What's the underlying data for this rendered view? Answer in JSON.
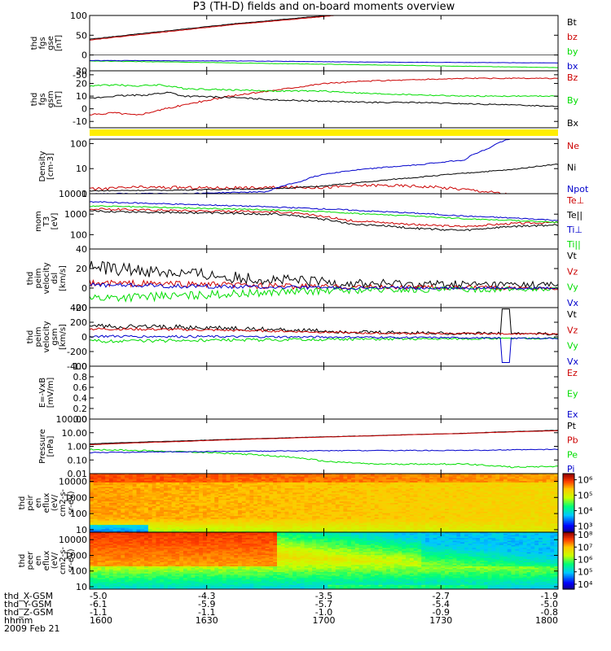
{
  "title": "P3 (TH-D) fields and on-board moments overview",
  "date": "2009 Feb 21",
  "colors": {
    "black": "#000000",
    "red": "#cc0000",
    "green": "#00dd00",
    "blue": "#0000cc",
    "yellow": "#ffee00"
  },
  "chart_data": [
    {
      "id": "fgs_gse",
      "type": "line",
      "ylabel": [
        "thd",
        "fgs",
        "gse",
        "[nT]"
      ],
      "ylim": [
        -40,
        100
      ],
      "yscale": "linear",
      "yticks": [
        "100",
        "50",
        "0",
        "-50"
      ],
      "ytickvals": [
        100,
        50,
        0,
        -50
      ],
      "series": [
        {
          "name": "Bt",
          "color": "#000000",
          "x": [
            0,
            0.3,
            0.6,
            1.0
          ],
          "y": [
            40,
            78,
            110,
            140
          ]
        },
        {
          "name": "bz",
          "color": "#cc0000",
          "x": [
            0,
            0.3,
            0.6,
            1.0
          ],
          "y": [
            38,
            76,
            108,
            138
          ]
        },
        {
          "name": "by",
          "color": "#00dd00",
          "x": [
            0,
            0.3,
            0.6,
            1.0
          ],
          "y": [
            -15,
            -20,
            -25,
            -32
          ]
        },
        {
          "name": "bx",
          "color": "#0000cc",
          "x": [
            0,
            0.3,
            0.6,
            1.0
          ],
          "y": [
            -14,
            -15,
            -18,
            -20
          ]
        }
      ],
      "legend": [
        "Bt",
        "bz",
        "by",
        "bx"
      ],
      "legend_colors": [
        "#000000",
        "#cc0000",
        "#00dd00",
        "#0000cc"
      ]
    },
    {
      "id": "fgs_gsm",
      "type": "line",
      "ylabel": [
        "thd",
        "fgs",
        "gsm",
        "[nT]"
      ],
      "ylim": [
        -15,
        30
      ],
      "yscale": "linear",
      "yticks": [
        "30",
        "20",
        "10",
        "0",
        "-10"
      ],
      "ytickvals": [
        30,
        20,
        10,
        0,
        -10
      ],
      "series": [
        {
          "name": "Bz",
          "color": "#cc0000",
          "x": [
            0,
            0.05,
            0.1,
            0.2,
            0.3,
            0.4,
            0.5,
            0.6,
            0.7,
            0.8,
            0.9,
            1.0
          ],
          "y": [
            -5,
            -3,
            -5,
            3,
            10,
            15,
            20,
            22,
            23,
            24,
            24,
            24
          ]
        },
        {
          "name": "By",
          "color": "#00dd00",
          "x": [
            0,
            0.05,
            0.1,
            0.15,
            0.2,
            0.3,
            0.4,
            0.5,
            0.6,
            0.7,
            0.8,
            0.9,
            1.0
          ],
          "y": [
            18,
            19,
            18,
            19,
            16,
            15,
            14,
            14,
            12,
            11,
            10,
            10,
            10
          ]
        },
        {
          "name": "Bx",
          "color": "#000000",
          "x": [
            0,
            0.05,
            0.12,
            0.17,
            0.2,
            0.3,
            0.4,
            0.5,
            0.6,
            0.7,
            0.8,
            0.9,
            1.0
          ],
          "y": [
            8,
            10,
            11,
            13,
            10,
            9,
            7,
            6,
            5,
            5,
            4,
            3,
            2
          ]
        }
      ],
      "legend": [
        "Bz",
        "By",
        "Bx"
      ],
      "legend_colors": [
        "#cc0000",
        "#00dd00",
        "#000000"
      ]
    },
    {
      "id": "density",
      "type": "line",
      "ylabel": [
        "Density",
        "[cm-3]"
      ],
      "ylim": [
        1,
        150
      ],
      "yscale": "log",
      "yticks": [
        "100",
        "10",
        "1"
      ],
      "ytickvals": [
        100,
        10,
        1
      ],
      "series": [
        {
          "name": "Ne",
          "color": "#cc0000",
          "x": [
            0,
            0.1,
            0.3,
            0.5,
            0.6,
            0.7,
            0.8,
            0.85,
            0.9,
            1.0
          ],
          "y": [
            1.5,
            1.8,
            1.7,
            1.8,
            2.2,
            2.0,
            1.5,
            1.2,
            0.9,
            0.8
          ]
        },
        {
          "name": "Ni",
          "color": "#000000",
          "x": [
            0,
            0.2,
            0.4,
            0.5,
            0.6,
            0.7,
            0.8,
            0.9,
            1.0
          ],
          "y": [
            1.3,
            1.4,
            1.6,
            2,
            3,
            4.5,
            6.5,
            9,
            15
          ]
        },
        {
          "name": "Npot",
          "color": "#0000cc",
          "x": [
            0,
            0.2,
            0.38,
            0.45,
            0.5,
            0.6,
            0.7,
            0.8,
            0.85,
            0.9,
            1.0
          ],
          "y": [
            1.0,
            1.0,
            1.2,
            3,
            6,
            10,
            14,
            22,
            60,
            160,
            300
          ]
        }
      ],
      "legend": [
        "Ne",
        "Ni",
        "Npot"
      ],
      "legend_colors": [
        "#cc0000",
        "#000000",
        "#0000cc"
      ]
    },
    {
      "id": "temperature",
      "type": "line",
      "ylabel": [
        "mom",
        "T3",
        "[eV]"
      ],
      "ylim": [
        20,
        10000
      ],
      "yscale": "log",
      "yticks": [
        "10000",
        "1000",
        "100"
      ],
      "ytickvals": [
        10000,
        1000,
        100
      ],
      "series": [
        {
          "name": "Te_perp",
          "color": "#cc0000",
          "x": [
            0,
            0.2,
            0.4,
            0.55,
            0.7,
            0.8,
            0.9,
            1.0
          ],
          "y": [
            1800,
            1500,
            1300,
            500,
            300,
            250,
            350,
            400
          ]
        },
        {
          "name": "Te_par",
          "color": "#000000",
          "x": [
            0,
            0.2,
            0.4,
            0.55,
            0.7,
            0.8,
            0.9,
            1.0
          ],
          "y": [
            1400,
            1200,
            1000,
            350,
            200,
            160,
            250,
            300
          ]
        },
        {
          "name": "Ti_perp",
          "color": "#0000cc",
          "x": [
            0,
            0.2,
            0.4,
            0.6,
            0.8,
            1.0
          ],
          "y": [
            4000,
            3000,
            2200,
            1400,
            800,
            500
          ]
        },
        {
          "name": "Ti_par",
          "color": "#00dd00",
          "x": [
            0,
            0.2,
            0.4,
            0.6,
            0.8,
            1.0
          ],
          "y": [
            2500,
            2000,
            1600,
            1000,
            600,
            400
          ]
        }
      ],
      "legend": [
        "Te⊥",
        "Te||",
        "Ti⊥",
        "Ti||"
      ],
      "legend_colors": [
        "#cc0000",
        "#000000",
        "#0000cc",
        "#00dd00"
      ]
    },
    {
      "id": "velocity_dsl",
      "type": "line",
      "ylabel": [
        "thd",
        "peim",
        "velocity",
        "dsl",
        "[km/s]"
      ],
      "ylim": [
        -20,
        40
      ],
      "yscale": "linear",
      "yticks": [
        "40",
        "20",
        "0",
        "-20"
      ],
      "ytickvals": [
        40,
        20,
        0,
        -20
      ],
      "series": [
        {
          "name": "Vt",
          "color": "#000000",
          "x": [
            0,
            0.2,
            0.4,
            0.6,
            1.0
          ],
          "y": [
            22,
            15,
            8,
            4,
            3
          ]
        },
        {
          "name": "Vz",
          "color": "#cc0000",
          "x": [
            0,
            0.2,
            0.4,
            0.6,
            1.0
          ],
          "y": [
            5,
            4,
            2,
            1,
            0
          ]
        },
        {
          "name": "Vy",
          "color": "#00dd00",
          "x": [
            0,
            0.2,
            0.4,
            0.6,
            1.0
          ],
          "y": [
            -10,
            -8,
            -4,
            -2,
            -1
          ]
        },
        {
          "name": "Vx",
          "color": "#0000cc",
          "x": [
            0,
            0.2,
            0.4,
            0.6,
            1.0
          ],
          "y": [
            3,
            2,
            1,
            0,
            0
          ]
        }
      ],
      "legend": [
        "Vt",
        "Vz",
        "Vy",
        "Vx"
      ],
      "legend_colors": [
        "#000000",
        "#cc0000",
        "#00dd00",
        "#0000cc"
      ]
    },
    {
      "id": "velocity_gsm",
      "type": "line",
      "ylabel": [
        "thd",
        "peim",
        "velocity",
        "gsm",
        "[km/s]"
      ],
      "ylim": [
        -400,
        400
      ],
      "yscale": "linear",
      "yticks": [
        "400",
        "200",
        "0",
        "-200",
        "-400"
      ],
      "ytickvals": [
        400,
        200,
        0,
        -200,
        -400
      ],
      "series": [
        {
          "name": "Vt",
          "color": "#000000",
          "x": [
            0,
            0.2,
            0.4,
            0.6,
            1.0
          ],
          "y": [
            150,
            130,
            100,
            60,
            40
          ]
        },
        {
          "name": "Vz",
          "color": "#cc0000",
          "x": [
            0,
            0.2,
            0.4,
            0.6,
            1.0
          ],
          "y": [
            110,
            100,
            80,
            50,
            40
          ]
        },
        {
          "name": "Vy",
          "color": "#00dd00",
          "x": [
            0,
            0.2,
            0.4,
            0.6,
            1.0
          ],
          "y": [
            -60,
            -50,
            -40,
            -30,
            -20
          ]
        },
        {
          "name": "Vx",
          "color": "#0000cc",
          "x": [
            0,
            0.2,
            0.4,
            0.6,
            1.0
          ],
          "y": [
            10,
            5,
            0,
            -5,
            -20
          ]
        }
      ],
      "legend": [
        "Vt",
        "Vz",
        "Vy",
        "Vx"
      ],
      "legend_colors": [
        "#000000",
        "#cc0000",
        "#00dd00",
        "#0000cc"
      ]
    },
    {
      "id": "efield",
      "type": "line",
      "ylabel": [
        "E=-VxB",
        "[mV/m]"
      ],
      "ylim": [
        0,
        1
      ],
      "yscale": "linear",
      "yticks": [
        "1.0",
        "0.8",
        "0.6",
        "0.4",
        "0.2",
        "0.0"
      ],
      "ytickvals": [
        1.0,
        0.8,
        0.6,
        0.4,
        0.2,
        0.0
      ],
      "series": [],
      "legend": [
        "Ez",
        "Ey",
        "Ex"
      ],
      "legend_colors": [
        "#cc0000",
        "#00dd00",
        "#0000cc"
      ]
    },
    {
      "id": "pressure",
      "type": "line",
      "ylabel": [
        "Pressure",
        "[nPa]"
      ],
      "ylim": [
        0.01,
        100
      ],
      "yscale": "log",
      "yticks": [
        "100.00",
        "10.00",
        "1.00",
        "0.10",
        "0.01"
      ],
      "ytickvals": [
        100,
        10,
        1,
        0.1,
        0.01
      ],
      "series": [
        {
          "name": "Pt",
          "color": "#000000",
          "x": [
            0,
            0.2,
            0.4,
            0.6,
            0.8,
            1.0
          ],
          "y": [
            1.5,
            2.5,
            4,
            6,
            9,
            15
          ]
        },
        {
          "name": "Pb",
          "color": "#cc0000",
          "x": [
            0,
            0.2,
            0.4,
            0.6,
            0.8,
            1.0
          ],
          "y": [
            1.3,
            2.3,
            3.8,
            5.8,
            8.8,
            14
          ]
        },
        {
          "name": "Pe",
          "color": "#00dd00",
          "x": [
            0,
            0.1,
            0.3,
            0.5,
            0.6,
            0.8,
            0.9,
            1.0
          ],
          "y": [
            0.6,
            0.5,
            0.3,
            0.08,
            0.05,
            0.05,
            0.03,
            0.035
          ]
        },
        {
          "name": "Pi",
          "color": "#0000cc",
          "x": [
            0,
            0.2,
            0.4,
            0.6,
            0.8,
            1.0
          ],
          "y": [
            0.35,
            0.4,
            0.45,
            0.5,
            0.5,
            0.6
          ]
        }
      ],
      "legend": [
        "Pt",
        "Pb",
        "Pe",
        "Pi"
      ],
      "legend_colors": [
        "#000000",
        "#cc0000",
        "#00dd00",
        "#0000cc"
      ]
    },
    {
      "id": "peir_spec",
      "type": "heatmap",
      "ylabel": [
        "thd",
        "peir",
        "en",
        "eflux",
        "(eV/",
        "cm2-s-",
        "sr-eV)"
      ],
      "ylim": [
        7,
        30000
      ],
      "yscale": "log",
      "yticks": [
        "10000",
        "1000",
        "100",
        "10"
      ],
      "ytickvals": [
        10000,
        1000,
        100,
        10
      ],
      "colorbar": {
        "ticks": [
          "10⁶",
          "10⁵",
          "10⁴",
          "10³"
        ],
        "tickvals": [
          6,
          5,
          4,
          3
        ],
        "range": [
          2.6,
          6.4
        ]
      }
    },
    {
      "id": "peer_spec",
      "type": "heatmap",
      "ylabel": [
        "thd",
        "peer",
        "en",
        "eflux",
        "(eV/",
        "cm2-s-",
        "sr-eV)"
      ],
      "ylim": [
        7,
        30000
      ],
      "yscale": "log",
      "yticks": [
        "10000",
        "1000",
        "100",
        "10"
      ],
      "ytickvals": [
        10000,
        1000,
        100,
        10
      ],
      "colorbar": {
        "ticks": [
          "10⁸",
          "10⁷",
          "10⁶",
          "10⁵",
          "10⁴"
        ],
        "tickvals": [
          8,
          7,
          6,
          5,
          4
        ],
        "range": [
          3.6,
          8.2
        ]
      }
    }
  ],
  "xaxis": {
    "labels": [
      "thd_X-GSM",
      "thd_Y-GSM",
      "thd_Z-GSM",
      "hhmm"
    ],
    "positions": [
      0,
      0.25,
      0.5,
      0.75,
      1.0
    ],
    "rows": [
      [
        "-5.0",
        "-4.3",
        "-3.5",
        "-2.7",
        "-1.9"
      ],
      [
        "-6.1",
        "-5.9",
        "-5.7",
        "-5.4",
        "-5.0"
      ],
      [
        "-1.1",
        "-1.1",
        "-1.0",
        "-0.9",
        "-0.8"
      ],
      [
        "1600",
        "1630",
        "1700",
        "1730",
        "1800"
      ]
    ]
  }
}
